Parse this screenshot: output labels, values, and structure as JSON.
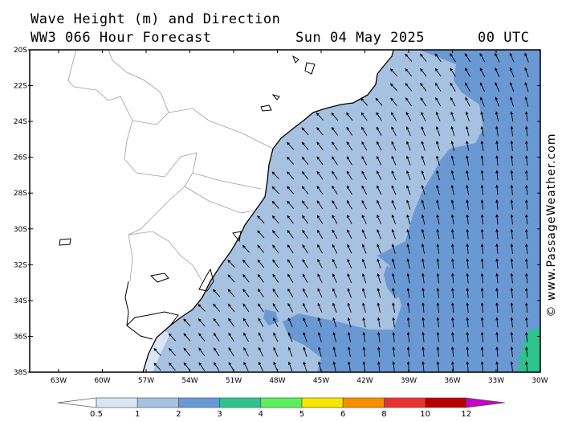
{
  "header": {
    "title": "Wave Height (m) and Direction",
    "subtitle": "WW3 066 Hour Forecast",
    "date": "Sun 04 May 2025",
    "time": "00 UTC"
  },
  "map": {
    "lat_labels": [
      "20S",
      "22S",
      "24S",
      "26S",
      "28S",
      "30S",
      "32S",
      "34S",
      "36S",
      "38S"
    ],
    "lon_labels": [
      "63W",
      "60W",
      "57W",
      "54W",
      "51W",
      "48W",
      "45W",
      "42W",
      "39W",
      "36W",
      "33W",
      "30W"
    ],
    "arrow_direction": "north",
    "colors": {
      "land": "#ffffff",
      "coast": "#000000",
      "borders": "#9e9e9e",
      "band_0_5_1": "#dbe6f5",
      "band_1_2": "#a7c1e1",
      "band_2_3": "#6a98d3",
      "band_3_4": "#2fc28e"
    }
  },
  "legend": {
    "labels": [
      "0.5",
      "1",
      "2",
      "3",
      "4",
      "5",
      "6",
      "8",
      "10",
      "12"
    ],
    "colors": [
      "#ffffff",
      "#dbe6f5",
      "#a7c1e1",
      "#6a98d3",
      "#2fc28e",
      "#5df05d",
      "#f7e600",
      "#f78e00",
      "#e83232",
      "#b40000",
      "#c800c8"
    ]
  },
  "copyright": "© www.PassageWeather.com"
}
